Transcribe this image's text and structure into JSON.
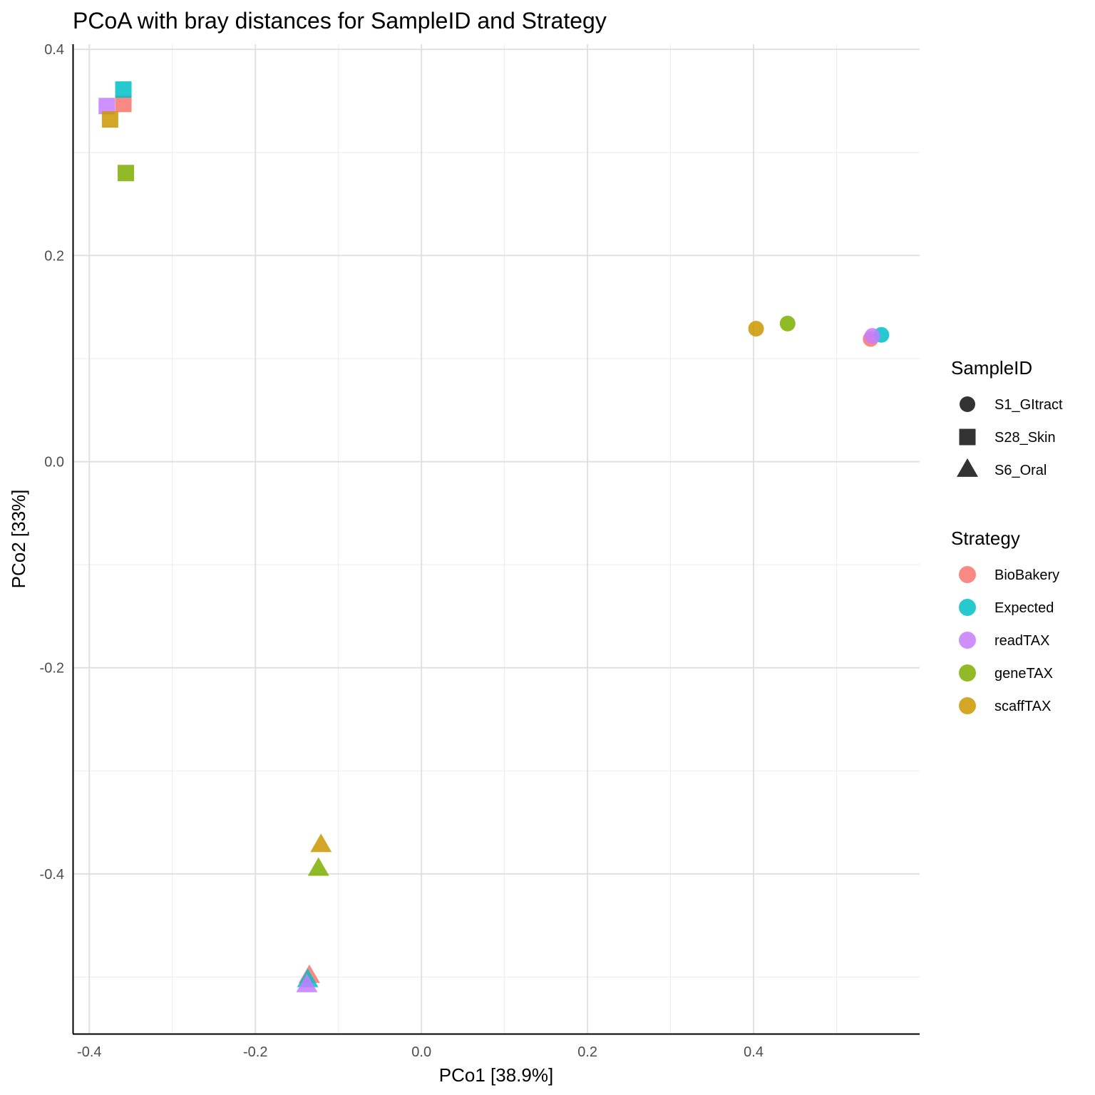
{
  "chart_data": {
    "type": "scatter",
    "title": "PCoA with bray distances for SampleID and Strategy",
    "xlabel": "PCo1 [38.9%]",
    "ylabel": "PCo2 [33%]",
    "xlim": [
      -0.42,
      0.6
    ],
    "ylim": [
      -0.555,
      0.405
    ],
    "x_ticks": [
      -0.4,
      -0.2,
      0.0,
      0.2,
      0.4
    ],
    "x_tick_labels": [
      "-0.4",
      "-0.2",
      "0.0",
      "0.2",
      "0.4"
    ],
    "y_ticks": [
      -0.4,
      -0.2,
      0.0,
      0.2,
      0.4
    ],
    "y_tick_labels": [
      "-0.4",
      "-0.2",
      "0.0",
      "0.2",
      "0.4"
    ],
    "grid": true,
    "legend_position": "right",
    "legends": {
      "shape": {
        "title": "SampleID",
        "items": [
          {
            "label": "S1_GItract",
            "shape": "circle"
          },
          {
            "label": "S28_Skin",
            "shape": "square"
          },
          {
            "label": "S6_Oral",
            "shape": "triangle"
          }
        ]
      },
      "color": {
        "title": "Strategy",
        "items": [
          {
            "label": "BioBakery",
            "color": "#F8766D"
          },
          {
            "label": "Expected",
            "color": "#00BFC4"
          },
          {
            "label": "readTAX",
            "color": "#C77CFF"
          },
          {
            "label": "geneTAX",
            "color": "#7CAE00"
          },
          {
            "label": "scaffTAX",
            "color": "#CD9600"
          }
        ]
      }
    },
    "points": [
      {
        "sample": "S28_Skin",
        "strategy": "BioBakery",
        "x": -0.359,
        "y": 0.347
      },
      {
        "sample": "S28_Skin",
        "strategy": "Expected",
        "x": -0.359,
        "y": 0.361
      },
      {
        "sample": "S28_Skin",
        "strategy": "readTAX",
        "x": -0.379,
        "y": 0.345
      },
      {
        "sample": "S28_Skin",
        "strategy": "geneTAX",
        "x": -0.356,
        "y": 0.28
      },
      {
        "sample": "S28_Skin",
        "strategy": "scaffTAX",
        "x": -0.375,
        "y": 0.332
      },
      {
        "sample": "S1_GItract",
        "strategy": "BioBakery",
        "x": 0.541,
        "y": 0.119
      },
      {
        "sample": "S1_GItract",
        "strategy": "Expected",
        "x": 0.554,
        "y": 0.123
      },
      {
        "sample": "S1_GItract",
        "strategy": "readTAX",
        "x": 0.543,
        "y": 0.122
      },
      {
        "sample": "S1_GItract",
        "strategy": "geneTAX",
        "x": 0.441,
        "y": 0.134
      },
      {
        "sample": "S1_GItract",
        "strategy": "scaffTAX",
        "x": 0.403,
        "y": 0.129
      },
      {
        "sample": "S6_Oral",
        "strategy": "BioBakery",
        "x": -0.135,
        "y": -0.499
      },
      {
        "sample": "S6_Oral",
        "strategy": "Expected",
        "x": -0.137,
        "y": -0.503
      },
      {
        "sample": "S6_Oral",
        "strategy": "readTAX",
        "x": -0.138,
        "y": -0.508
      },
      {
        "sample": "S6_Oral",
        "strategy": "geneTAX",
        "x": -0.124,
        "y": -0.395
      },
      {
        "sample": "S6_Oral",
        "strategy": "scaffTAX",
        "x": -0.121,
        "y": -0.372
      }
    ]
  }
}
